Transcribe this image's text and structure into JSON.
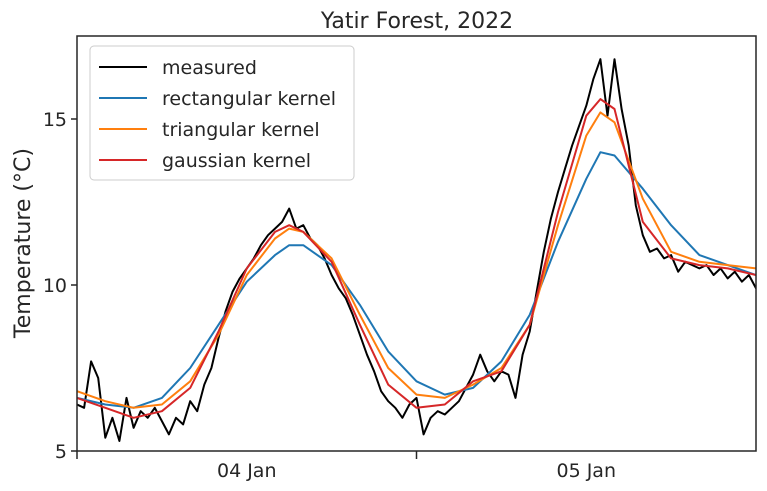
{
  "chart_data": {
    "type": "line",
    "title": "Yatir Forest, 2022",
    "xlabel": "",
    "ylabel": "Temperature (°C)",
    "ylim": [
      5,
      17.5
    ],
    "xlim": [
      "2022-01-03 12:00",
      "2022-01-05 12:00"
    ],
    "yticks": [
      {
        "value": 5,
        "label": "5"
      },
      {
        "value": 10,
        "label": "10"
      },
      {
        "value": 15,
        "label": "15"
      }
    ],
    "xticks": [
      {
        "value": "2022-01-04 00:00",
        "label": "04 Jan"
      },
      {
        "value": "2022-01-05 00:00",
        "label": "05 Jan"
      }
    ],
    "xticks_minor": [
      "2022-01-03 12:00",
      "2022-01-04 12:00"
    ],
    "grid": false,
    "legend_position": "top-left",
    "series": [
      {
        "name": "measured",
        "color": "#000000",
        "points": [
          [
            "2022-01-03 12:00",
            6.4
          ],
          [
            "2022-01-03 12:30",
            6.3
          ],
          [
            "2022-01-03 13:00",
            7.7
          ],
          [
            "2022-01-03 13:30",
            7.2
          ],
          [
            "2022-01-03 14:00",
            5.4
          ],
          [
            "2022-01-03 14:30",
            6.0
          ],
          [
            "2022-01-03 15:00",
            5.3
          ],
          [
            "2022-01-03 15:30",
            6.6
          ],
          [
            "2022-01-03 16:00",
            5.7
          ],
          [
            "2022-01-03 16:30",
            6.2
          ],
          [
            "2022-01-03 17:00",
            6.0
          ],
          [
            "2022-01-03 17:30",
            6.3
          ],
          [
            "2022-01-03 18:00",
            5.9
          ],
          [
            "2022-01-03 18:30",
            5.5
          ],
          [
            "2022-01-03 19:00",
            6.0
          ],
          [
            "2022-01-03 19:30",
            5.8
          ],
          [
            "2022-01-03 20:00",
            6.5
          ],
          [
            "2022-01-03 20:30",
            6.2
          ],
          [
            "2022-01-03 21:00",
            7.0
          ],
          [
            "2022-01-03 21:30",
            7.5
          ],
          [
            "2022-01-03 22:00",
            8.4
          ],
          [
            "2022-01-03 22:30",
            9.2
          ],
          [
            "2022-01-03 23:00",
            9.8
          ],
          [
            "2022-01-03 23:30",
            10.2
          ],
          [
            "2022-01-04 00:00",
            10.5
          ],
          [
            "2022-01-04 00:30",
            10.8
          ],
          [
            "2022-01-04 01:00",
            11.2
          ],
          [
            "2022-01-04 01:30",
            11.5
          ],
          [
            "2022-01-04 02:00",
            11.7
          ],
          [
            "2022-01-04 02:30",
            11.9
          ],
          [
            "2022-01-04 03:00",
            12.3
          ],
          [
            "2022-01-04 03:30",
            11.7
          ],
          [
            "2022-01-04 04:00",
            11.8
          ],
          [
            "2022-01-04 04:30",
            11.4
          ],
          [
            "2022-01-04 05:00",
            11.2
          ],
          [
            "2022-01-04 05:30",
            10.8
          ],
          [
            "2022-01-04 06:00",
            10.3
          ],
          [
            "2022-01-04 06:30",
            9.9
          ],
          [
            "2022-01-04 07:00",
            9.6
          ],
          [
            "2022-01-04 07:30",
            9.1
          ],
          [
            "2022-01-04 08:00",
            8.5
          ],
          [
            "2022-01-04 08:30",
            7.9
          ],
          [
            "2022-01-04 09:00",
            7.4
          ],
          [
            "2022-01-04 09:30",
            6.8
          ],
          [
            "2022-01-04 10:00",
            6.5
          ],
          [
            "2022-01-04 10:30",
            6.3
          ],
          [
            "2022-01-04 11:00",
            6.0
          ],
          [
            "2022-01-04 11:30",
            6.4
          ],
          [
            "2022-01-04 12:00",
            6.6
          ],
          [
            "2022-01-04 12:30",
            5.5
          ],
          [
            "2022-01-04 13:00",
            6.0
          ],
          [
            "2022-01-04 13:30",
            6.2
          ],
          [
            "2022-01-04 14:00",
            6.1
          ],
          [
            "2022-01-04 14:30",
            6.3
          ],
          [
            "2022-01-04 15:00",
            6.5
          ],
          [
            "2022-01-04 15:30",
            6.9
          ],
          [
            "2022-01-04 16:00",
            7.3
          ],
          [
            "2022-01-04 16:30",
            7.9
          ],
          [
            "2022-01-04 17:00",
            7.4
          ],
          [
            "2022-01-04 17:30",
            7.1
          ],
          [
            "2022-01-04 18:00",
            7.4
          ],
          [
            "2022-01-04 18:30",
            7.3
          ],
          [
            "2022-01-04 19:00",
            6.6
          ],
          [
            "2022-01-04 19:30",
            7.9
          ],
          [
            "2022-01-04 20:00",
            8.6
          ],
          [
            "2022-01-04 20:30",
            9.8
          ],
          [
            "2022-01-04 21:00",
            11.0
          ],
          [
            "2022-01-04 21:30",
            12.0
          ],
          [
            "2022-01-04 22:00",
            12.8
          ],
          [
            "2022-01-04 22:30",
            13.5
          ],
          [
            "2022-01-04 23:00",
            14.2
          ],
          [
            "2022-01-04 23:30",
            14.8
          ],
          [
            "2022-01-05 00:00",
            15.4
          ],
          [
            "2022-01-05 00:30",
            16.2
          ],
          [
            "2022-01-05 01:00",
            16.8
          ],
          [
            "2022-01-05 01:30",
            15.1
          ],
          [
            "2022-01-05 02:00",
            16.8
          ],
          [
            "2022-01-05 02:30",
            15.3
          ],
          [
            "2022-01-05 03:00",
            14.2
          ],
          [
            "2022-01-05 03:30",
            12.4
          ],
          [
            "2022-01-05 04:00",
            11.5
          ],
          [
            "2022-01-05 04:30",
            11.0
          ],
          [
            "2022-01-05 05:00",
            11.1
          ],
          [
            "2022-01-05 05:30",
            10.8
          ],
          [
            "2022-01-05 06:00",
            10.9
          ],
          [
            "2022-01-05 06:30",
            10.4
          ],
          [
            "2022-01-05 07:00",
            10.7
          ],
          [
            "2022-01-05 07:30",
            10.6
          ],
          [
            "2022-01-05 08:00",
            10.5
          ],
          [
            "2022-01-05 08:30",
            10.6
          ],
          [
            "2022-01-05 09:00",
            10.3
          ],
          [
            "2022-01-05 09:30",
            10.5
          ],
          [
            "2022-01-05 10:00",
            10.2
          ],
          [
            "2022-01-05 10:30",
            10.4
          ],
          [
            "2022-01-05 11:00",
            10.1
          ],
          [
            "2022-01-05 11:30",
            10.3
          ],
          [
            "2022-01-05 12:00",
            9.9
          ]
        ]
      },
      {
        "name": "rectangular kernel",
        "color": "#1f77b4",
        "points": [
          [
            "2022-01-03 12:00",
            6.6
          ],
          [
            "2022-01-03 14:00",
            6.4
          ],
          [
            "2022-01-03 16:00",
            6.3
          ],
          [
            "2022-01-03 18:00",
            6.6
          ],
          [
            "2022-01-03 20:00",
            7.5
          ],
          [
            "2022-01-03 22:00",
            8.8
          ],
          [
            "2022-01-04 00:00",
            10.1
          ],
          [
            "2022-01-04 02:00",
            10.9
          ],
          [
            "2022-01-04 03:00",
            11.2
          ],
          [
            "2022-01-04 04:00",
            11.2
          ],
          [
            "2022-01-04 06:00",
            10.6
          ],
          [
            "2022-01-04 08:00",
            9.4
          ],
          [
            "2022-01-04 10:00",
            8.0
          ],
          [
            "2022-01-04 12:00",
            7.1
          ],
          [
            "2022-01-04 14:00",
            6.7
          ],
          [
            "2022-01-04 16:00",
            6.9
          ],
          [
            "2022-01-04 18:00",
            7.7
          ],
          [
            "2022-01-04 20:00",
            9.1
          ],
          [
            "2022-01-04 22:00",
            11.3
          ],
          [
            "2022-01-05 00:00",
            13.2
          ],
          [
            "2022-01-05 01:00",
            14.0
          ],
          [
            "2022-01-05 02:00",
            13.9
          ],
          [
            "2022-01-05 04:00",
            12.9
          ],
          [
            "2022-01-05 06:00",
            11.8
          ],
          [
            "2022-01-05 08:00",
            10.9
          ],
          [
            "2022-01-05 10:00",
            10.6
          ],
          [
            "2022-01-05 12:00",
            10.3
          ]
        ]
      },
      {
        "name": "triangular kernel",
        "color": "#ff7f0e",
        "points": [
          [
            "2022-01-03 12:00",
            6.8
          ],
          [
            "2022-01-03 14:00",
            6.5
          ],
          [
            "2022-01-03 16:00",
            6.3
          ],
          [
            "2022-01-03 18:00",
            6.4
          ],
          [
            "2022-01-03 20:00",
            7.1
          ],
          [
            "2022-01-03 22:00",
            8.5
          ],
          [
            "2022-01-04 00:00",
            10.3
          ],
          [
            "2022-01-04 02:00",
            11.4
          ],
          [
            "2022-01-04 03:00",
            11.7
          ],
          [
            "2022-01-04 04:00",
            11.6
          ],
          [
            "2022-01-04 06:00",
            10.8
          ],
          [
            "2022-01-04 08:00",
            9.1
          ],
          [
            "2022-01-04 10:00",
            7.5
          ],
          [
            "2022-01-04 12:00",
            6.7
          ],
          [
            "2022-01-04 14:00",
            6.6
          ],
          [
            "2022-01-04 16:00",
            7.0
          ],
          [
            "2022-01-04 18:00",
            7.5
          ],
          [
            "2022-01-04 20:00",
            8.8
          ],
          [
            "2022-01-04 22:00",
            11.8
          ],
          [
            "2022-01-05 00:00",
            14.5
          ],
          [
            "2022-01-05 01:00",
            15.2
          ],
          [
            "2022-01-05 02:00",
            14.9
          ],
          [
            "2022-01-05 04:00",
            12.6
          ],
          [
            "2022-01-05 06:00",
            11.0
          ],
          [
            "2022-01-05 08:00",
            10.7
          ],
          [
            "2022-01-05 10:00",
            10.6
          ],
          [
            "2022-01-05 12:00",
            10.5
          ]
        ]
      },
      {
        "name": "gaussian kernel",
        "color": "#d62728",
        "points": [
          [
            "2022-01-03 12:00",
            6.6
          ],
          [
            "2022-01-03 14:00",
            6.3
          ],
          [
            "2022-01-03 16:00",
            6.0
          ],
          [
            "2022-01-03 18:00",
            6.2
          ],
          [
            "2022-01-03 20:00",
            6.9
          ],
          [
            "2022-01-03 22:00",
            8.6
          ],
          [
            "2022-01-04 00:00",
            10.5
          ],
          [
            "2022-01-04 02:00",
            11.6
          ],
          [
            "2022-01-04 03:00",
            11.8
          ],
          [
            "2022-01-04 04:00",
            11.6
          ],
          [
            "2022-01-04 06:00",
            10.7
          ],
          [
            "2022-01-04 08:00",
            8.8
          ],
          [
            "2022-01-04 10:00",
            7.0
          ],
          [
            "2022-01-04 12:00",
            6.3
          ],
          [
            "2022-01-04 14:00",
            6.4
          ],
          [
            "2022-01-04 16:00",
            7.1
          ],
          [
            "2022-01-04 18:00",
            7.4
          ],
          [
            "2022-01-04 20:00",
            8.8
          ],
          [
            "2022-01-04 22:00",
            12.2
          ],
          [
            "2022-01-05 00:00",
            15.1
          ],
          [
            "2022-01-05 01:00",
            15.6
          ],
          [
            "2022-01-05 02:00",
            15.3
          ],
          [
            "2022-01-05 04:00",
            11.9
          ],
          [
            "2022-01-05 06:00",
            10.8
          ],
          [
            "2022-01-05 08:00",
            10.6
          ],
          [
            "2022-01-05 10:00",
            10.5
          ],
          [
            "2022-01-05 12:00",
            10.3
          ]
        ]
      }
    ]
  }
}
